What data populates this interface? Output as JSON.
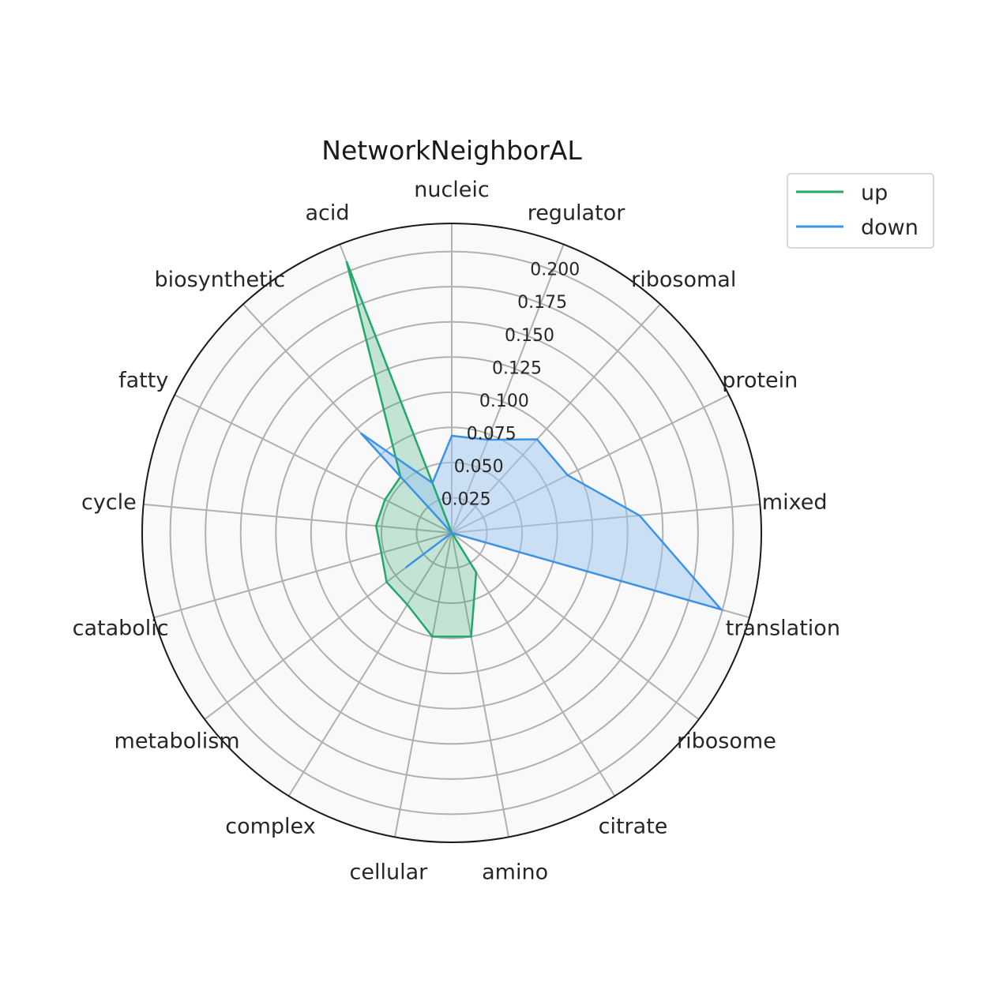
{
  "chart_data": {
    "type": "radar",
    "title": "NetworkNeighborAL",
    "categories": [
      "nucleic",
      "regulator",
      "ribosomal",
      "protein",
      "mixed",
      "translation",
      "ribosome",
      "citrate",
      "amino",
      "cellular",
      "complex",
      "metabolism",
      "catabolic",
      "cycle",
      "fatty",
      "biosynthetic",
      "acid"
    ],
    "rlim": [
      0,
      0.22
    ],
    "rticks": [
      0.025,
      0.05,
      0.075,
      0.1,
      0.125,
      0.15,
      0.175,
      0.2
    ],
    "rtick_labels": [
      "0.025",
      "0.050",
      "0.075",
      "0.100",
      "0.125",
      "0.150",
      "0.175",
      "0.200"
    ],
    "grid": true,
    "legend_position": "top-right",
    "series": [
      {
        "name": "up",
        "color": "#22a86b",
        "fill": "#22a86b",
        "values": [
          0.0,
          0.0,
          0.0,
          0.0,
          0.0,
          0.0,
          0.0,
          0.033,
          0.075,
          0.075,
          0.06,
          0.058,
          0.052,
          0.054,
          0.053,
          0.054,
          0.207
        ]
      },
      {
        "name": "down",
        "color": "#3b93e6",
        "fill": "#9cc4f0",
        "values": [
          0.069,
          0.071,
          0.09,
          0.092,
          0.134,
          0.199,
          0.0,
          0.0,
          0.0,
          0.0,
          0.0,
          0.041,
          0.0,
          0.0,
          0.0,
          0.096,
          0.038
        ]
      }
    ]
  }
}
